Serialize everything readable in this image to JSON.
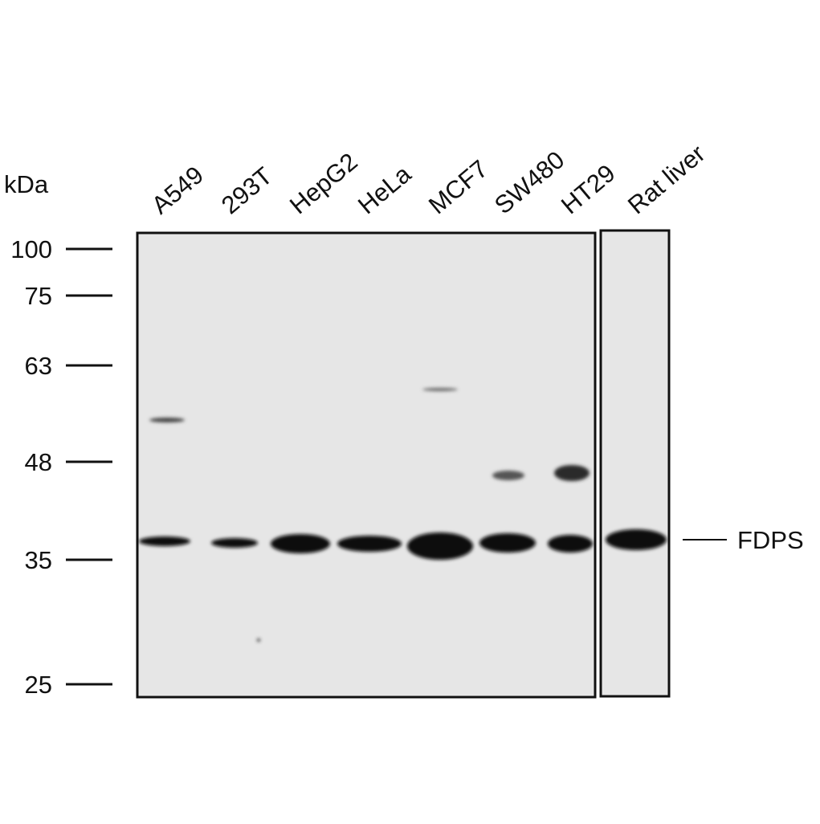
{
  "figure": {
    "unit_label": "kDa",
    "markers": [
      "100",
      "75",
      "63",
      "48",
      "35",
      "25"
    ],
    "lanes": [
      "A549",
      "293T",
      "HepG2",
      "HeLa",
      "MCF7",
      "SW480",
      "HT29",
      "Rat liver"
    ],
    "band_label": "FDPS"
  }
}
